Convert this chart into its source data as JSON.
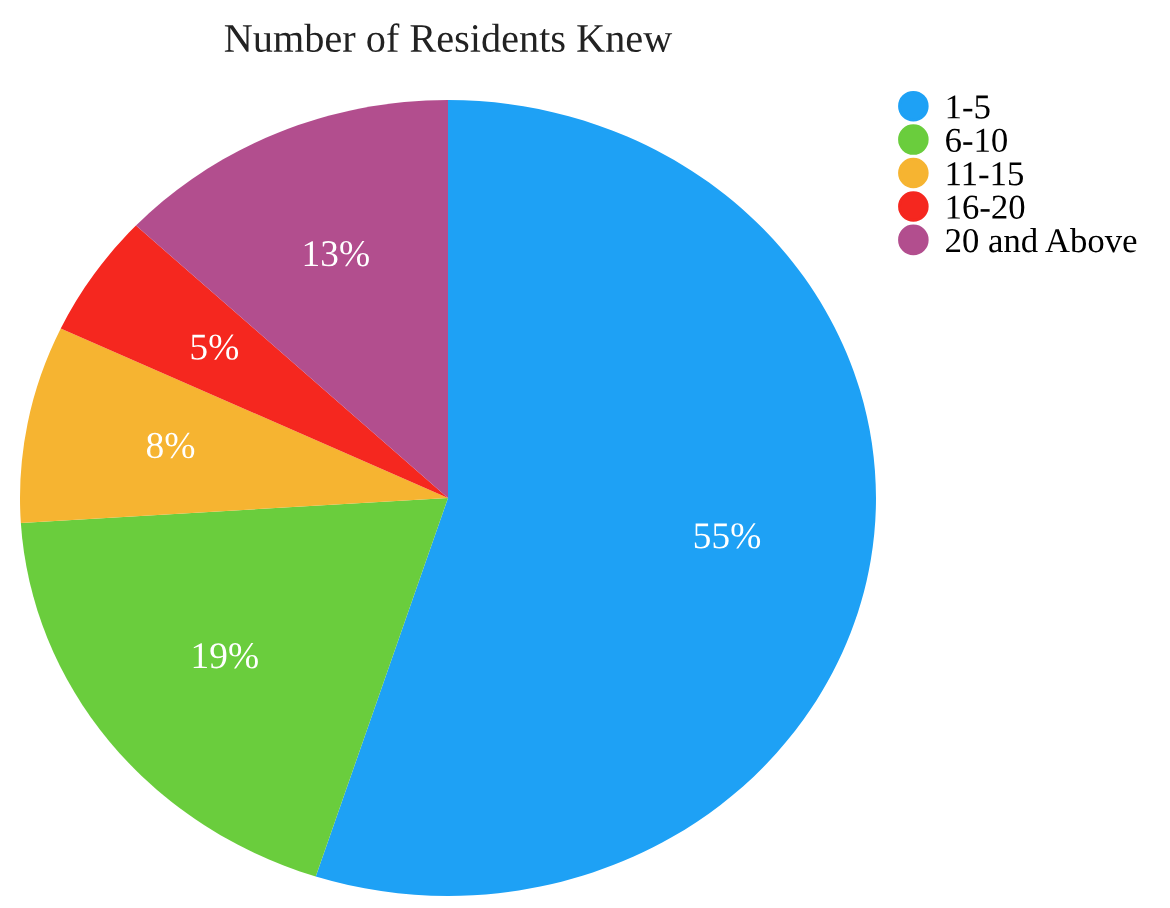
{
  "chart_data": {
    "type": "pie",
    "title": "Number of Residents Knew",
    "categories": [
      "1-5",
      "6-10",
      "11-15",
      "16-20",
      "20 and Above"
    ],
    "values": [
      55,
      19,
      8,
      5,
      13
    ],
    "value_labels": [
      "55%",
      "19%",
      "8%",
      "5%",
      "13%"
    ],
    "colors": [
      "#1ea1f5",
      "#6acd3d",
      "#f6b431",
      "#f5271f",
      "#b24e8e"
    ],
    "legend": "top right"
  }
}
